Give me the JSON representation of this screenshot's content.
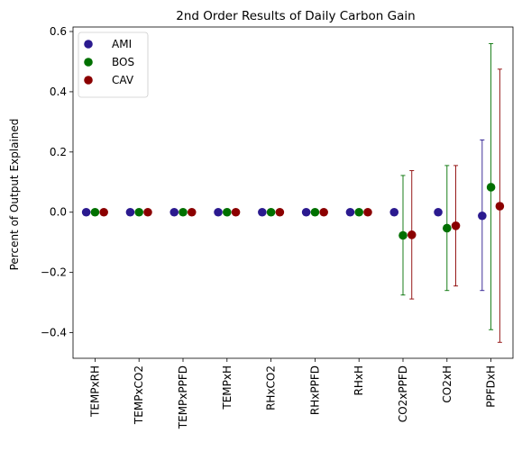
{
  "chart_data": {
    "type": "scatter",
    "title": "2nd Order Results of Daily Carbon Gain",
    "xlabel": "",
    "ylabel": "Percent of Output Explained",
    "ylim": [
      -0.485,
      0.615
    ],
    "yticks": [
      -0.4,
      -0.2,
      0.0,
      0.2,
      0.4,
      0.6
    ],
    "ytick_labels": [
      "−0.4",
      "−0.2",
      "0.0",
      "0.2",
      "0.4",
      "0.6"
    ],
    "categories": [
      "TEMPxRH",
      "TEMPxCO2",
      "TEMPxPPFD",
      "TEMPxH",
      "RHxCO2",
      "RHxPPFD",
      "RHxH",
      "CO2xPPFD",
      "CO2xH",
      "PPFDxH"
    ],
    "grid": false,
    "legend_position": "top-left",
    "series": [
      {
        "name": "AMI",
        "color": "#2b1a8f",
        "values": [
          0.0,
          0.0,
          0.0,
          0.0,
          0.0,
          0.0,
          0.0,
          0.0,
          0.0,
          -0.012
        ],
        "err_low": [
          0,
          0,
          0,
          0,
          0,
          0,
          0,
          0,
          0,
          -0.26
        ],
        "err_high": [
          0,
          0,
          0,
          0,
          0,
          0,
          0,
          0,
          0,
          0.24
        ]
      },
      {
        "name": "BOS",
        "color": "#007000",
        "values": [
          0.0,
          0.0,
          0.0,
          0.0,
          0.0,
          0.0,
          0.0,
          -0.077,
          -0.053,
          0.083
        ],
        "err_low": [
          0,
          0,
          0,
          0,
          0,
          0,
          0,
          -0.275,
          -0.26,
          -0.39
        ],
        "err_high": [
          0,
          0,
          0,
          0,
          0,
          0,
          0,
          0.122,
          0.155,
          0.56
        ]
      },
      {
        "name": "CAV",
        "color": "#8b0000",
        "values": [
          0.0,
          0.0,
          0.0,
          0.0,
          0.0,
          0.0,
          0.0,
          -0.075,
          -0.045,
          0.02
        ],
        "err_low": [
          0,
          0,
          0,
          0,
          0,
          0,
          0,
          -0.288,
          -0.245,
          -0.432
        ],
        "err_high": [
          0,
          0,
          0,
          0,
          0,
          0,
          0,
          0.138,
          0.155,
          0.475
        ]
      }
    ]
  }
}
